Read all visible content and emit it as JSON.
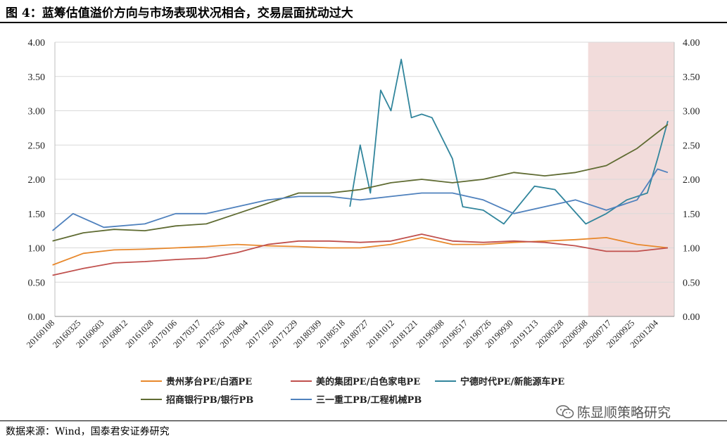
{
  "figure": {
    "title": "图 4：蓝筹估值溢价方向与市场表现状况相合，交易层面扰动过大",
    "source": "数据来源：Wind，国泰君安证券研究",
    "watermark": "陈显顺策略研究",
    "watermark_icon": "wechat-icon"
  },
  "chart_data": {
    "type": "line",
    "title": "图 4：蓝筹估值溢价方向与市场表现状况相合，交易层面扰动过大",
    "xlabel": "",
    "ylabel": "",
    "ylim": [
      0,
      4
    ],
    "y_ticks": [
      "0.00",
      "0.50",
      "1.00",
      "1.50",
      "2.00",
      "2.50",
      "3.00",
      "3.50",
      "4.00"
    ],
    "y2lim": [
      0,
      4
    ],
    "x_tick_labels": [
      "20160108",
      "20160325",
      "20160603",
      "20160812",
      "20161028",
      "20170106",
      "20170317",
      "20170526",
      "20170804",
      "20171020",
      "20171229",
      "20180309",
      "20180518",
      "20180727",
      "20181012",
      "20181221",
      "20190308",
      "20190517",
      "20190726",
      "20190930",
      "20191213",
      "20200228",
      "20200508",
      "20200717",
      "20200925",
      "20201204"
    ],
    "grid": true,
    "legend_position": "bottom",
    "shaded_region": {
      "from": "20200508",
      "to": "2021-01",
      "color": "#f2dcdb"
    },
    "series": [
      {
        "name": "贵州茅台PE/白酒PE",
        "color": "#e8882c",
        "points": [
          [
            "2016-01",
            0.75
          ],
          [
            "2016-04",
            0.92
          ],
          [
            "2016-07",
            0.97
          ],
          [
            "2016-10",
            0.98
          ],
          [
            "2017-01",
            1.0
          ],
          [
            "2017-04",
            1.02
          ],
          [
            "2017-07",
            1.05
          ],
          [
            "2017-10",
            1.03
          ],
          [
            "2018-01",
            1.02
          ],
          [
            "2018-04",
            1.0
          ],
          [
            "2018-07",
            1.0
          ],
          [
            "2018-10",
            1.05
          ],
          [
            "2019-01",
            1.15
          ],
          [
            "2019-04",
            1.05
          ],
          [
            "2019-07",
            1.05
          ],
          [
            "2019-10",
            1.08
          ],
          [
            "2020-01",
            1.1
          ],
          [
            "2020-04",
            1.12
          ],
          [
            "2020-07",
            1.15
          ],
          [
            "2020-10",
            1.05
          ],
          [
            "2021-01",
            1.0
          ]
        ]
      },
      {
        "name": "美的集团PE/白色家电PE",
        "color": "#c0504d",
        "points": [
          [
            "2016-01",
            0.6
          ],
          [
            "2016-04",
            0.7
          ],
          [
            "2016-07",
            0.78
          ],
          [
            "2016-10",
            0.8
          ],
          [
            "2017-01",
            0.83
          ],
          [
            "2017-04",
            0.85
          ],
          [
            "2017-07",
            0.93
          ],
          [
            "2017-10",
            1.05
          ],
          [
            "2018-01",
            1.1
          ],
          [
            "2018-04",
            1.1
          ],
          [
            "2018-07",
            1.08
          ],
          [
            "2018-10",
            1.1
          ],
          [
            "2019-01",
            1.2
          ],
          [
            "2019-04",
            1.1
          ],
          [
            "2019-07",
            1.08
          ],
          [
            "2019-10",
            1.1
          ],
          [
            "2020-01",
            1.08
          ],
          [
            "2020-04",
            1.03
          ],
          [
            "2020-07",
            0.95
          ],
          [
            "2020-10",
            0.95
          ],
          [
            "2021-01",
            1.0
          ]
        ]
      },
      {
        "name": "宁德时代PE/新能源车PE",
        "color": "#31859c",
        "points": [
          [
            "2018-06",
            1.6
          ],
          [
            "2018-07",
            2.5
          ],
          [
            "2018-08",
            1.8
          ],
          [
            "2018-09",
            3.3
          ],
          [
            "2018-10",
            3.0
          ],
          [
            "2018-11",
            3.75
          ],
          [
            "2018-12",
            2.9
          ],
          [
            "2019-01",
            2.95
          ],
          [
            "2019-02",
            2.9
          ],
          [
            "2019-03",
            2.6
          ],
          [
            "2019-04",
            2.3
          ],
          [
            "2019-05",
            1.6
          ],
          [
            "2019-07",
            1.55
          ],
          [
            "2019-09",
            1.35
          ],
          [
            "2019-12",
            1.9
          ],
          [
            "2020-02",
            1.85
          ],
          [
            "2020-05",
            1.35
          ],
          [
            "2020-07",
            1.5
          ],
          [
            "2020-09",
            1.7
          ],
          [
            "2020-11",
            1.8
          ],
          [
            "2020-12",
            2.3
          ],
          [
            "2021-01",
            2.85
          ]
        ]
      },
      {
        "name": "招商银行PB/银行PB",
        "color": "#5f6b32",
        "points": [
          [
            "2016-01",
            1.1
          ],
          [
            "2016-04",
            1.22
          ],
          [
            "2016-07",
            1.27
          ],
          [
            "2016-10",
            1.25
          ],
          [
            "2017-01",
            1.32
          ],
          [
            "2017-04",
            1.35
          ],
          [
            "2017-07",
            1.5
          ],
          [
            "2017-10",
            1.65
          ],
          [
            "2018-01",
            1.8
          ],
          [
            "2018-04",
            1.8
          ],
          [
            "2018-07",
            1.85
          ],
          [
            "2018-10",
            1.95
          ],
          [
            "2019-01",
            2.0
          ],
          [
            "2019-04",
            1.95
          ],
          [
            "2019-07",
            2.0
          ],
          [
            "2019-10",
            2.1
          ],
          [
            "2020-01",
            2.05
          ],
          [
            "2020-04",
            2.1
          ],
          [
            "2020-07",
            2.2
          ],
          [
            "2020-10",
            2.45
          ],
          [
            "2021-01",
            2.8
          ]
        ]
      },
      {
        "name": "三一重工PB/工程机械PB",
        "color": "#4f81bd",
        "points": [
          [
            "2016-01",
            1.25
          ],
          [
            "2016-03",
            1.5
          ],
          [
            "2016-06",
            1.3
          ],
          [
            "2016-10",
            1.35
          ],
          [
            "2017-01",
            1.5
          ],
          [
            "2017-04",
            1.5
          ],
          [
            "2017-07",
            1.6
          ],
          [
            "2017-10",
            1.7
          ],
          [
            "2018-01",
            1.75
          ],
          [
            "2018-04",
            1.75
          ],
          [
            "2018-07",
            1.7
          ],
          [
            "2018-10",
            1.75
          ],
          [
            "2019-01",
            1.8
          ],
          [
            "2019-04",
            1.8
          ],
          [
            "2019-07",
            1.7
          ],
          [
            "2019-10",
            1.5
          ],
          [
            "2020-01",
            1.6
          ],
          [
            "2020-04",
            1.7
          ],
          [
            "2020-07",
            1.55
          ],
          [
            "2020-10",
            1.7
          ],
          [
            "2020-12",
            2.15
          ],
          [
            "2021-01",
            2.1
          ]
        ]
      }
    ]
  }
}
